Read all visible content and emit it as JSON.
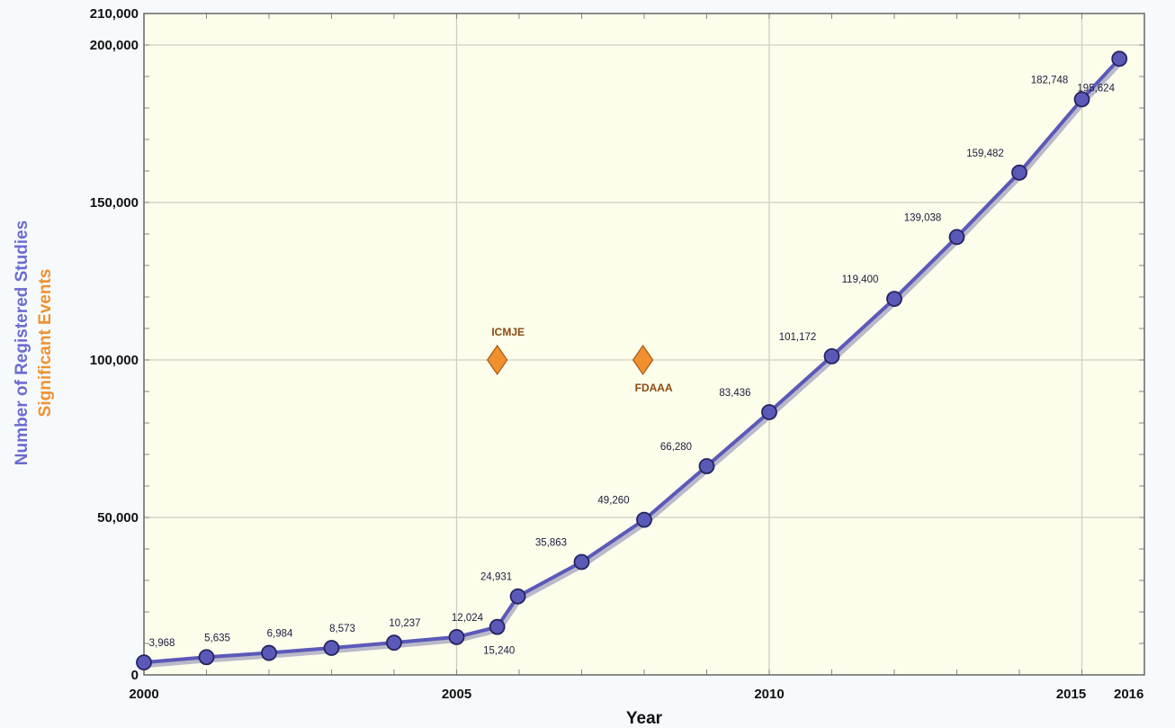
{
  "chart_data": {
    "type": "line",
    "xlabel": "Year",
    "ylabel": "Number of Registered Studies",
    "ylabel2": "Significant Events",
    "xlim": [
      2000,
      2016
    ],
    "ylim": [
      0,
      210000
    ],
    "x_ticks": [
      2000,
      2005,
      2010,
      2015,
      2016
    ],
    "x_tick_labels": [
      "2000",
      "2005",
      "2010",
      "2015",
      "2016"
    ],
    "y_ticks": [
      0,
      50000,
      100000,
      150000,
      200000,
      210000
    ],
    "y_tick_labels": [
      "0",
      "50,000",
      "100,000",
      "150,000",
      "200,000",
      "210,000"
    ],
    "grid": true,
    "series": [
      {
        "x": [
          2000,
          2001,
          2002,
          2003,
          2004,
          2005,
          2005.65,
          2005.98,
          2007,
          2008,
          2009,
          2010,
          2011,
          2012,
          2013,
          2014,
          2015,
          2015.6
        ],
        "values": [
          3968,
          5635,
          6984,
          8573,
          10237,
          12024,
          15240,
          24931,
          35863,
          49260,
          66280,
          83436,
          101172,
          119400,
          139038,
          159482,
          182748,
          195624
        ],
        "labels": [
          "3,968",
          "5,635",
          "6,984",
          "8,573",
          "10,237",
          "12,024",
          "15,240",
          "24,931",
          "35,863",
          "49,260",
          "66,280",
          "83,436",
          "101,172",
          "119,400",
          "139,038",
          "159,482",
          "182,748",
          "195,624"
        ],
        "color": "#5b59b8"
      }
    ],
    "events": [
      {
        "label": "ICMJE",
        "x": 2005.65,
        "y": 100000,
        "label_position": "above",
        "color": "#f0902e"
      },
      {
        "label": "FDAAA",
        "x": 2007.98,
        "y": 100000,
        "label_position": "below",
        "color": "#f0902e"
      }
    ],
    "colors": {
      "plot_background": "#fdfdec",
      "grid": "#cfcfc4",
      "line": "#5b59b8",
      "marker_fill": "#5b59b8",
      "marker_edge": "#25255e",
      "ylabel": "#6b6bd0",
      "ylabel2": "#f0902e"
    }
  }
}
